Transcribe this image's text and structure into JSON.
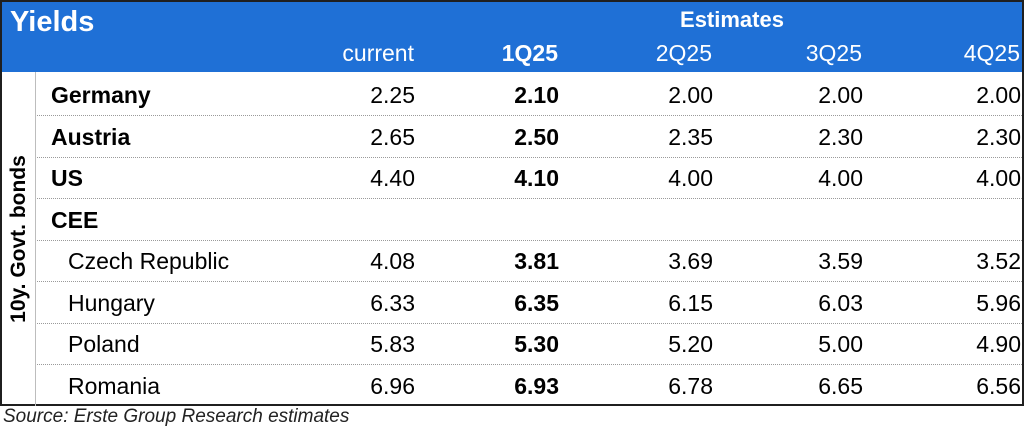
{
  "title": "Yields",
  "estimates_label": "Estimates",
  "columns": [
    "current",
    "1Q25",
    "2Q25",
    "3Q25",
    "4Q25"
  ],
  "side_label": "10y. Govt. bonds",
  "rows": [
    {
      "name": "Germany",
      "level": "country",
      "values": [
        "2.25",
        "2.10",
        "2.00",
        "2.00",
        "2.00"
      ]
    },
    {
      "name": "Austria",
      "level": "country",
      "values": [
        "2.65",
        "2.50",
        "2.35",
        "2.30",
        "2.30"
      ]
    },
    {
      "name": "US",
      "level": "country",
      "values": [
        "4.40",
        "4.10",
        "4.00",
        "4.00",
        "4.00"
      ]
    },
    {
      "name": "CEE",
      "level": "group",
      "values": []
    },
    {
      "name": "Czech Republic",
      "level": "sub",
      "values": [
        "4.08",
        "3.81",
        "3.69",
        "3.59",
        "3.52"
      ]
    },
    {
      "name": "Hungary",
      "level": "sub",
      "values": [
        "6.33",
        "6.35",
        "6.15",
        "6.03",
        "5.96"
      ]
    },
    {
      "name": "Poland",
      "level": "sub",
      "values": [
        "5.83",
        "5.30",
        "5.20",
        "5.00",
        "4.90"
      ]
    },
    {
      "name": "Romania",
      "level": "sub",
      "values": [
        "6.96",
        "6.93",
        "6.78",
        "6.65",
        "6.56"
      ]
    }
  ],
  "source": "Source: Erste Group Research estimates",
  "colors": {
    "header_bg": "#1f70d6",
    "header_text": "#ffffff",
    "border": "#1f1f1f"
  }
}
